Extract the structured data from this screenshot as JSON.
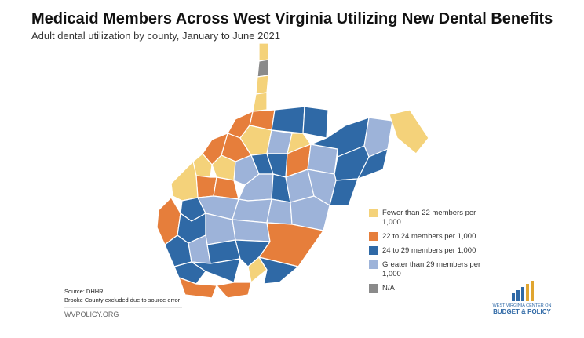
{
  "header": {
    "title": "Medicaid Members Across West Virginia Utilizing New Dental Benefits",
    "subtitle": "Adult dental utilization by county, January to June 2021"
  },
  "legend": [
    {
      "label": "Fewer than 22 members per 1,000",
      "color": "#f4d27a"
    },
    {
      "label": "22 to 24 members per 1,000",
      "color": "#e67e3b"
    },
    {
      "label": "24 to 29 members per 1,000",
      "color": "#2f69a6"
    },
    {
      "label": "Greater than 29 members per 1,000",
      "color": "#9db3d9"
    },
    {
      "label": "N/A",
      "color": "#8a8a8a"
    }
  ],
  "footer": {
    "source": "Source: DHHR",
    "note": "Brooke County excluded due to source error",
    "site": "WVPOLICY.ORG",
    "logo_top": "WEST VIRGINIA CENTER ON",
    "logo_bottom": "BUDGET & POLICY"
  }
}
